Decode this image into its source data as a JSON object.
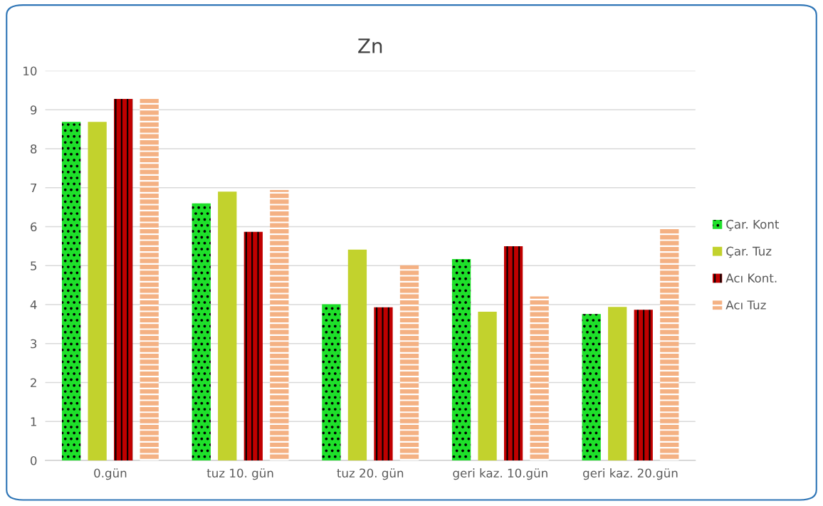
{
  "chart_data": {
    "type": "bar",
    "title": "Zn",
    "categories": [
      "0.gün",
      "tuz 10. gün",
      "tuz 20. gün",
      "geri kaz. 10.gün",
      "geri kaz. 20.gün"
    ],
    "series": [
      {
        "name": "Çar. Kont",
        "color": "#1ee02a",
        "values": [
          8.69,
          6.6,
          4.01,
          5.17,
          3.76
        ]
      },
      {
        "name": "Çar. Tuz",
        "color": "#c2d22d",
        "values": [
          8.69,
          6.9,
          5.41,
          3.82,
          3.94
        ]
      },
      {
        "name": "Acı Kont.",
        "color": "#c00000",
        "values": [
          9.28,
          5.87,
          3.93,
          5.5,
          3.87
        ]
      },
      {
        "name": "Acı Tuz",
        "color": "#f4b183",
        "values": [
          9.28,
          6.94,
          5.01,
          4.21,
          5.95
        ]
      }
    ],
    "ylim": [
      0,
      10
    ],
    "yticks": [
      0,
      1,
      2,
      3,
      4,
      5,
      6,
      7,
      8,
      9,
      10
    ],
    "grid": "y",
    "legend": "right"
  }
}
